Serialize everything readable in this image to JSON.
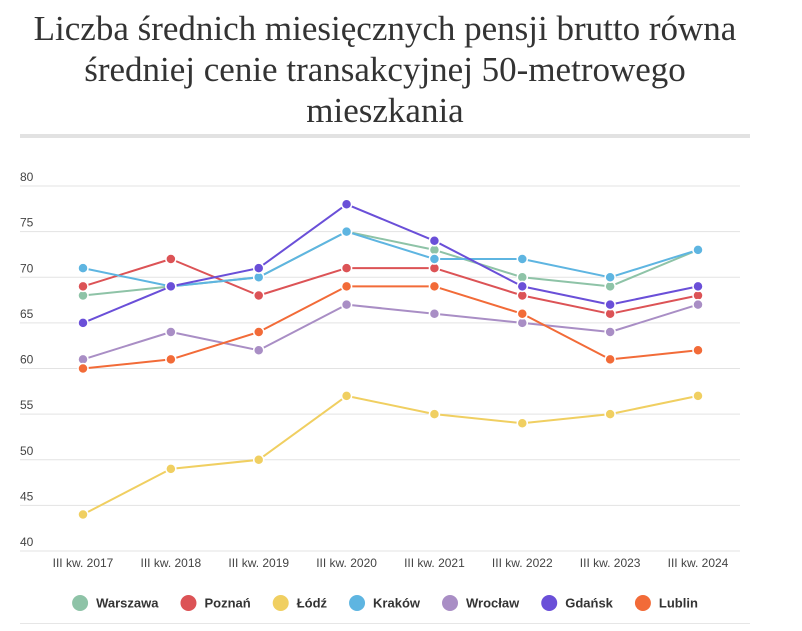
{
  "title": "Liczba średnich miesięcznych pensji brutto równa średniej cenie transakcyjnej 50-metrowego mieszkania",
  "chart_data": {
    "type": "line",
    "title": "Liczba średnich miesięcznych pensji brutto równa średniej cenie transakcyjnej 50-metrowego mieszkania",
    "xlabel": "",
    "ylabel": "",
    "ylim": [
      40,
      80
    ],
    "yticks": [
      "80",
      "75",
      "70",
      "65",
      "60",
      "55",
      "50",
      "45",
      "40"
    ],
    "grid": true,
    "legend_position": "bottom",
    "categories": [
      "III kw. 2017",
      "III kw. 2018",
      "III kw. 2019",
      "III kw. 2020",
      "III kw. 2021",
      "III kw. 2022",
      "III kw. 2023",
      "III kw. 2024"
    ],
    "series": [
      {
        "name": "Warszawa",
        "color": "#8ec3a7",
        "values": [
          68,
          69,
          70,
          75,
          73,
          70,
          69,
          73
        ]
      },
      {
        "name": "Poznań",
        "color": "#dc5356",
        "values": [
          69,
          72,
          68,
          71,
          71,
          68,
          66,
          68
        ]
      },
      {
        "name": "Łódź",
        "color": "#f0cf61",
        "values": [
          44,
          49,
          50,
          57,
          55,
          54,
          55,
          57
        ]
      },
      {
        "name": "Kraków",
        "color": "#5eb5e1",
        "values": [
          71,
          69,
          70,
          75,
          72,
          72,
          70,
          73
        ]
      },
      {
        "name": "Wrocław",
        "color": "#a98ec5",
        "values": [
          61,
          64,
          62,
          67,
          66,
          65,
          64,
          67
        ]
      },
      {
        "name": "Gdańsk",
        "color": "#6a4fd8",
        "values": [
          65,
          69,
          71,
          78,
          74,
          69,
          67,
          69
        ]
      },
      {
        "name": "Lublin",
        "color": "#f26b38",
        "values": [
          60,
          61,
          64,
          69,
          69,
          66,
          61,
          62
        ]
      }
    ]
  }
}
